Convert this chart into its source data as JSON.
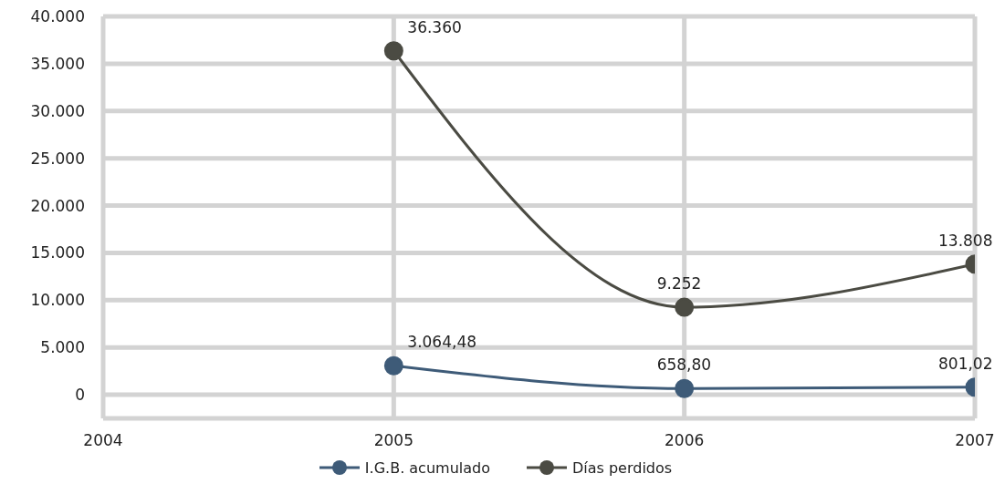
{
  "chart_data": {
    "type": "line",
    "x": [
      2005,
      2006,
      2007
    ],
    "series": [
      {
        "name": "I.G.B. acumulado",
        "color": "#3e5b78",
        "values": [
          3064.48,
          658.8,
          801.02
        ],
        "value_labels": [
          "3.064,48",
          "658,80",
          "801,02"
        ]
      },
      {
        "name": "Días perdidos",
        "color": "#4b4b43",
        "values": [
          36360,
          9252,
          13808
        ],
        "value_labels": [
          "36.360",
          "9.252",
          "13.808"
        ]
      }
    ],
    "xlim": [
      2004,
      2007
    ],
    "xticks": [
      2004,
      2005,
      2006,
      2007
    ],
    "ylim": [
      -2500,
      40000
    ],
    "yticks": [
      {
        "value": 0,
        "label": "0"
      },
      {
        "value": 5000,
        "label": "5.000"
      },
      {
        "value": 10000,
        "label": "10.000"
      },
      {
        "value": 15000,
        "label": "15.000"
      },
      {
        "value": 20000,
        "label": "20.000"
      },
      {
        "value": 25000,
        "label": "25.000"
      },
      {
        "value": 30000,
        "label": "30.000"
      },
      {
        "value": 35000,
        "label": "35.000"
      },
      {
        "value": 40000,
        "label": "40.000"
      }
    ],
    "grid": true,
    "legend": "bottom",
    "marker": "circle",
    "line_style": "solid"
  }
}
